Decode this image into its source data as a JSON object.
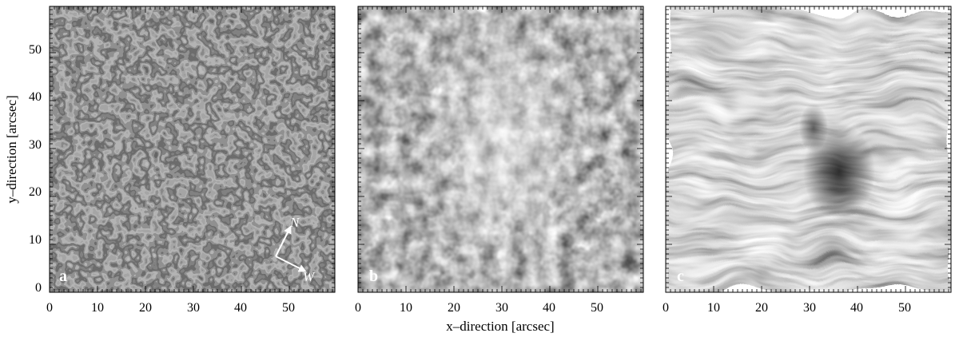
{
  "figure": {
    "x_label": "x–direction  [arcsec]",
    "y_label": "y–direction [arcsec]",
    "x_ticks": [
      "0",
      "10",
      "20",
      "30",
      "40",
      "50"
    ],
    "y_ticks": [
      "0",
      "10",
      "20",
      "30",
      "40",
      "50"
    ],
    "panels": [
      {
        "id": "a",
        "label": "a",
        "texture": "granulation"
      },
      {
        "id": "b",
        "label": "b",
        "texture": "network"
      },
      {
        "id": "c",
        "label": "c",
        "texture": "fibrils"
      }
    ],
    "compass": {
      "north": "N",
      "west": "W"
    }
  }
}
